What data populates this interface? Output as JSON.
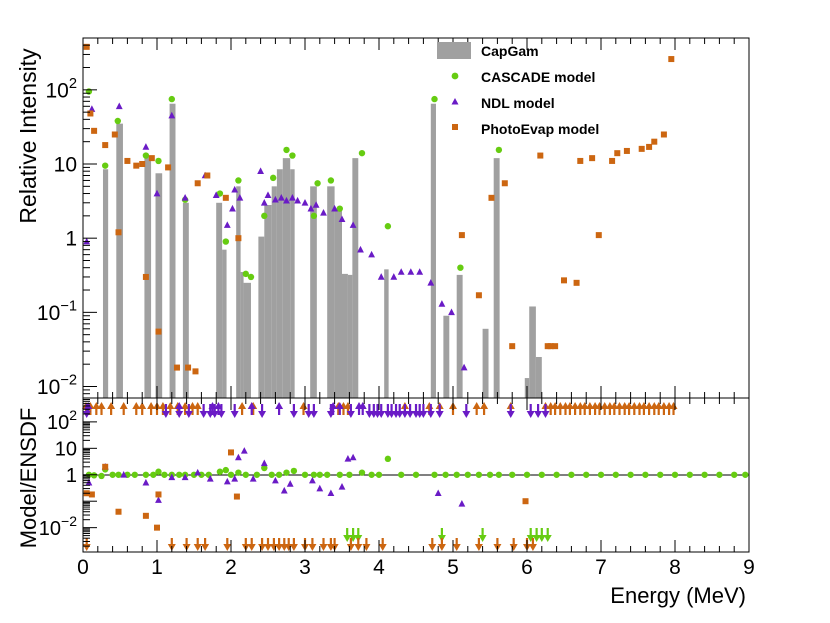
{
  "chart_data": [
    {
      "type": "bar",
      "panel": "top",
      "ylabel": "Relative Intensity",
      "xlabel": "",
      "yscale": "log",
      "ylim": [
        0.007,
        500
      ],
      "xlim": [
        0,
        9
      ],
      "yticks": [
        {
          "v": 0.01,
          "base": "10",
          "exp": "−2"
        },
        {
          "v": 0.1,
          "base": "10",
          "exp": "−1"
        },
        {
          "v": 1,
          "base": "1",
          "exp": ""
        },
        {
          "v": 10,
          "base": "10",
          "exp": ""
        },
        {
          "v": 100,
          "base": "10",
          "exp": "2"
        }
      ],
      "legend": {
        "position": "top-right",
        "entries": [
          "CapGam",
          "CASCADE model",
          "NDL model",
          "PhotoEvap model"
        ]
      },
      "colors": {
        "capgam": "#a0a0a0",
        "cascade": "#66cc11",
        "ndl": "#6a1bc6",
        "photoevap": "#cc6611"
      },
      "bars": [
        [
          0.27,
          0.34,
          8.5
        ],
        [
          0.45,
          0.54,
          35
        ],
        [
          0.83,
          0.92,
          13
        ],
        [
          0.98,
          1.07,
          7.5
        ],
        [
          1.17,
          1.25,
          65
        ],
        [
          1.35,
          1.43,
          3
        ],
        [
          1.8,
          1.88,
          3
        ],
        [
          1.88,
          1.94,
          0.7
        ],
        [
          2.07,
          2.13,
          5
        ],
        [
          2.13,
          2.17,
          0.35
        ],
        [
          2.17,
          2.27,
          0.25
        ],
        [
          2.37,
          2.45,
          1.05
        ],
        [
          2.45,
          2.55,
          2.8
        ],
        [
          2.55,
          2.62,
          5
        ],
        [
          2.62,
          2.7,
          8.5
        ],
        [
          2.7,
          2.8,
          12
        ],
        [
          2.8,
          2.86,
          8.5
        ],
        [
          3.07,
          3.16,
          5
        ],
        [
          3.3,
          3.4,
          5
        ],
        [
          3.4,
          3.5,
          2.5
        ],
        [
          3.5,
          3.58,
          0.33
        ],
        [
          3.58,
          3.64,
          0.32
        ],
        [
          3.64,
          3.72,
          12
        ],
        [
          4.07,
          4.13,
          0.38
        ],
        [
          4.7,
          4.77,
          65
        ],
        [
          4.87,
          4.95,
          0.09
        ],
        [
          5.05,
          5.13,
          0.32
        ],
        [
          5.4,
          5.48,
          0.06
        ],
        [
          5.55,
          5.63,
          12
        ],
        [
          5.97,
          6.03,
          0.013
        ],
        [
          6.03,
          6.12,
          0.12
        ],
        [
          6.12,
          6.2,
          0.025
        ]
      ],
      "cascade": [
        [
          0.08,
          95
        ],
        [
          0.3,
          9.5
        ],
        [
          0.47,
          38
        ],
        [
          0.85,
          13
        ],
        [
          1.02,
          11
        ],
        [
          1.2,
          75
        ],
        [
          1.38,
          3.3
        ],
        [
          1.85,
          4
        ],
        [
          1.93,
          0.9
        ],
        [
          2.1,
          6
        ],
        [
          2.2,
          0.33
        ],
        [
          2.27,
          0.3
        ],
        [
          2.45,
          2
        ],
        [
          2.57,
          6.5
        ],
        [
          2.75,
          15.5
        ],
        [
          2.83,
          13
        ],
        [
          3.12,
          2
        ],
        [
          3.17,
          5.5
        ],
        [
          3.35,
          6
        ],
        [
          3.47,
          2.5
        ],
        [
          3.77,
          14
        ],
        [
          4.12,
          1.45
        ],
        [
          4.75,
          75
        ],
        [
          5.1,
          0.4
        ],
        [
          5.62,
          15.5
        ]
      ],
      "ndl": [
        [
          0.05,
          0.9
        ],
        [
          0.12,
          55
        ],
        [
          0.49,
          60
        ],
        [
          0.85,
          17
        ],
        [
          1.0,
          4
        ],
        [
          1.2,
          45
        ],
        [
          1.38,
          3.5
        ],
        [
          1.65,
          7
        ],
        [
          1.8,
          3.8
        ],
        [
          1.95,
          1.5
        ],
        [
          2.02,
          2.5
        ],
        [
          2.05,
          4.5
        ],
        [
          2.12,
          3.5
        ],
        [
          2.4,
          8
        ],
        [
          2.45,
          3
        ],
        [
          2.5,
          3.8
        ],
        [
          2.6,
          3.3
        ],
        [
          2.68,
          3.5
        ],
        [
          2.75,
          3.2
        ],
        [
          2.83,
          3.5
        ],
        [
          2.9,
          3.2
        ],
        [
          3.0,
          3
        ],
        [
          3.08,
          2.5
        ],
        [
          3.15,
          2.8
        ],
        [
          3.25,
          2.2
        ],
        [
          3.4,
          2.5
        ],
        [
          3.5,
          1.8
        ],
        [
          3.65,
          1.5
        ],
        [
          3.75,
          0.7
        ],
        [
          3.9,
          0.6
        ],
        [
          4.03,
          0.3
        ],
        [
          4.2,
          0.3
        ],
        [
          4.3,
          0.35
        ],
        [
          4.43,
          0.35
        ],
        [
          4.55,
          0.35
        ],
        [
          4.7,
          0.25
        ],
        [
          4.85,
          0.13
        ],
        [
          4.98,
          0.1
        ],
        [
          5.15,
          0.018
        ]
      ],
      "photoevap": [
        [
          0.05,
          380
        ],
        [
          0.1,
          48
        ],
        [
          0.15,
          28
        ],
        [
          0.3,
          18
        ],
        [
          0.43,
          25
        ],
        [
          0.48,
          1.2
        ],
        [
          0.6,
          11
        ],
        [
          0.72,
          9.5
        ],
        [
          0.8,
          10
        ],
        [
          0.85,
          0.3
        ],
        [
          0.93,
          12
        ],
        [
          1.02,
          0.055
        ],
        [
          1.15,
          9
        ],
        [
          1.27,
          0.018
        ],
        [
          1.42,
          0.018
        ],
        [
          1.52,
          0.016
        ],
        [
          1.55,
          5.5
        ],
        [
          1.68,
          7
        ],
        [
          1.93,
          3.5
        ],
        [
          2.1,
          1
        ],
        [
          5.12,
          1.1
        ],
        [
          5.35,
          0.17
        ],
        [
          5.52,
          3.5
        ],
        [
          5.7,
          5.5
        ],
        [
          5.8,
          0.035
        ],
        [
          6.18,
          13
        ],
        [
          6.28,
          0.035
        ],
        [
          6.32,
          0.035
        ],
        [
          6.38,
          0.035
        ],
        [
          6.5,
          0.27
        ],
        [
          6.67,
          0.25
        ],
        [
          6.72,
          11
        ],
        [
          6.88,
          12
        ],
        [
          6.97,
          1.1
        ],
        [
          7.15,
          11
        ],
        [
          7.22,
          14
        ],
        [
          7.35,
          15
        ],
        [
          7.55,
          16
        ],
        [
          7.65,
          17
        ],
        [
          7.72,
          20
        ],
        [
          7.85,
          25
        ],
        [
          7.95,
          260
        ]
      ]
    },
    {
      "type": "scatter",
      "panel": "bottom",
      "title": "",
      "xlabel": "Energy (MeV)",
      "ylabel": "Model/ENSDF",
      "yscale": "log",
      "ylim": [
        0.0012,
        800
      ],
      "xlim": [
        0,
        9
      ],
      "xticks": [
        0,
        1,
        2,
        3,
        4,
        5,
        6,
        7,
        8,
        9
      ],
      "yticks": [
        {
          "v": 0.01,
          "base": "10",
          "exp": "−2"
        },
        {
          "v": 1,
          "base": "1",
          "exp": ""
        },
        {
          "v": 10,
          "base": "10",
          "exp": ""
        },
        {
          "v": 100,
          "base": "10",
          "exp": "2"
        }
      ],
      "cascade": [
        [
          0.08,
          1.0
        ],
        [
          0.15,
          0.95
        ],
        [
          0.25,
          0.9
        ],
        [
          0.3,
          1.6
        ],
        [
          0.4,
          1.0
        ],
        [
          0.48,
          1.0
        ],
        [
          0.6,
          1.0
        ],
        [
          0.7,
          1.0
        ],
        [
          0.85,
          1.0
        ],
        [
          0.95,
          1.0
        ],
        [
          1.02,
          1.3
        ],
        [
          1.1,
          1.0
        ],
        [
          1.2,
          1.0
        ],
        [
          1.3,
          1.0
        ],
        [
          1.38,
          1.0
        ],
        [
          1.5,
          1.0
        ],
        [
          1.6,
          1.0
        ],
        [
          1.7,
          1.0
        ],
        [
          1.85,
          1.3
        ],
        [
          1.93,
          1.5
        ],
        [
          2.0,
          1.0
        ],
        [
          2.1,
          1.2
        ],
        [
          2.2,
          1.0
        ],
        [
          2.35,
          1.0
        ],
        [
          2.45,
          1.8
        ],
        [
          2.55,
          1.0
        ],
        [
          2.65,
          1.0
        ],
        [
          2.75,
          1.2
        ],
        [
          2.85,
          1.4
        ],
        [
          3.0,
          1.0
        ],
        [
          3.12,
          1.0
        ],
        [
          3.2,
          1.0
        ],
        [
          3.3,
          1.0
        ],
        [
          3.47,
          1.0
        ],
        [
          3.6,
          1.0
        ],
        [
          3.77,
          1.2
        ],
        [
          3.9,
          1.0
        ],
        [
          4.0,
          1.0
        ],
        [
          4.12,
          4
        ],
        [
          4.3,
          1.0
        ],
        [
          4.5,
          1.0
        ],
        [
          4.75,
          1.0
        ],
        [
          4.9,
          1.0
        ],
        [
          5.05,
          1.0
        ],
        [
          5.2,
          1.0
        ],
        [
          5.35,
          1.0
        ],
        [
          5.5,
          1.0
        ],
        [
          5.62,
          1.0
        ],
        [
          5.8,
          1.0
        ],
        [
          6.0,
          1.0
        ],
        [
          6.2,
          1.0
        ],
        [
          6.4,
          1.0
        ],
        [
          6.6,
          1.0
        ],
        [
          6.8,
          1.0
        ],
        [
          7.0,
          1.0
        ],
        [
          7.2,
          1.0
        ],
        [
          7.4,
          1.0
        ],
        [
          7.6,
          1.0
        ],
        [
          7.8,
          1.0
        ],
        [
          8.0,
          1.0
        ],
        [
          8.2,
          1.0
        ],
        [
          8.4,
          1.0
        ],
        [
          8.6,
          1.0
        ],
        [
          8.8,
          1.0
        ],
        [
          8.95,
          1.0
        ]
      ],
      "ndl": [
        [
          0.08,
          0.5
        ],
        [
          0.3,
          2.0
        ],
        [
          0.55,
          1.0
        ],
        [
          0.85,
          0.5
        ],
        [
          1.02,
          0.11
        ],
        [
          1.2,
          0.8
        ],
        [
          1.38,
          0.8
        ],
        [
          1.55,
          1.2
        ],
        [
          1.72,
          0.7
        ],
        [
          1.95,
          0.55
        ],
        [
          2.05,
          0.7
        ],
        [
          2.1,
          4.5
        ],
        [
          2.18,
          8
        ],
        [
          2.3,
          0.7
        ],
        [
          2.45,
          2.7
        ],
        [
          2.6,
          0.6
        ],
        [
          2.72,
          0.25
        ],
        [
          2.8,
          0.45
        ],
        [
          3.1,
          0.6
        ],
        [
          3.2,
          0.3
        ],
        [
          3.35,
          0.2
        ],
        [
          3.5,
          0.35
        ],
        [
          3.58,
          4
        ],
        [
          3.65,
          4.5
        ],
        [
          4.8,
          0.2
        ],
        [
          5.12,
          0.08
        ]
      ],
      "photoevap": [
        [
          0.05,
          0.2
        ],
        [
          0.12,
          0.18
        ],
        [
          0.3,
          2.0
        ],
        [
          0.48,
          0.04
        ],
        [
          0.85,
          0.028
        ],
        [
          1.0,
          0.01
        ],
        [
          1.02,
          0.18
        ],
        [
          2.0,
          7
        ],
        [
          2.08,
          0.15
        ],
        [
          5.98,
          0.1
        ]
      ],
      "arrows_up": {
        "ndl": [
          0.07,
          1.3,
          1.75,
          1.83,
          2.28,
          2.65,
          3.38,
          3.47,
          3.73,
          3.78
        ],
        "photoevap": [
          0.04,
          0.1,
          0.18,
          0.25,
          0.38,
          0.55,
          0.72,
          0.8,
          0.92,
          1.0,
          1.08,
          1.18,
          1.28,
          1.38,
          1.48,
          1.55,
          2.15,
          2.3,
          2.98,
          3.45,
          3.52,
          3.58,
          4.35,
          4.68,
          4.82,
          5.0,
          5.32,
          5.42,
          5.78,
          6.25,
          6.32,
          6.38,
          6.45,
          6.52,
          6.58,
          6.65,
          6.72,
          6.78,
          6.85,
          6.92,
          6.98,
          7.05,
          7.12,
          7.18,
          7.25,
          7.32,
          7.38,
          7.45,
          7.52,
          7.58,
          7.65,
          7.72,
          7.78,
          7.85,
          7.92,
          7.98
        ]
      },
      "arrows_down": {
        "ndl": [
          0.05,
          1.12,
          1.3,
          1.43,
          1.63,
          1.72,
          1.78,
          1.87,
          2.05,
          2.42,
          2.85,
          3.05,
          3.12,
          3.35,
          3.62,
          3.87,
          3.93,
          3.98,
          4.03,
          4.12,
          4.17,
          4.23,
          4.28,
          4.35,
          4.42,
          4.5,
          4.55,
          4.6,
          4.7,
          4.82,
          5.18,
          5.78,
          6.05,
          6.15,
          6.25
        ],
        "photoevap": [
          0.05,
          1.2,
          1.4,
          1.55,
          1.65,
          1.95,
          2.2,
          2.28,
          2.42,
          2.5,
          2.58,
          2.65,
          2.72,
          2.78,
          2.85,
          3.0,
          3.1,
          3.25,
          3.35,
          3.4,
          3.62,
          3.72,
          3.83,
          4.05,
          4.72,
          4.85,
          5.05,
          5.35,
          5.6,
          5.82,
          6.0,
          6.08
        ],
        "cascade": [
          3.57,
          3.65,
          3.72,
          4.85,
          5.4,
          6.05,
          6.13,
          6.2,
          6.28
        ]
      }
    }
  ]
}
